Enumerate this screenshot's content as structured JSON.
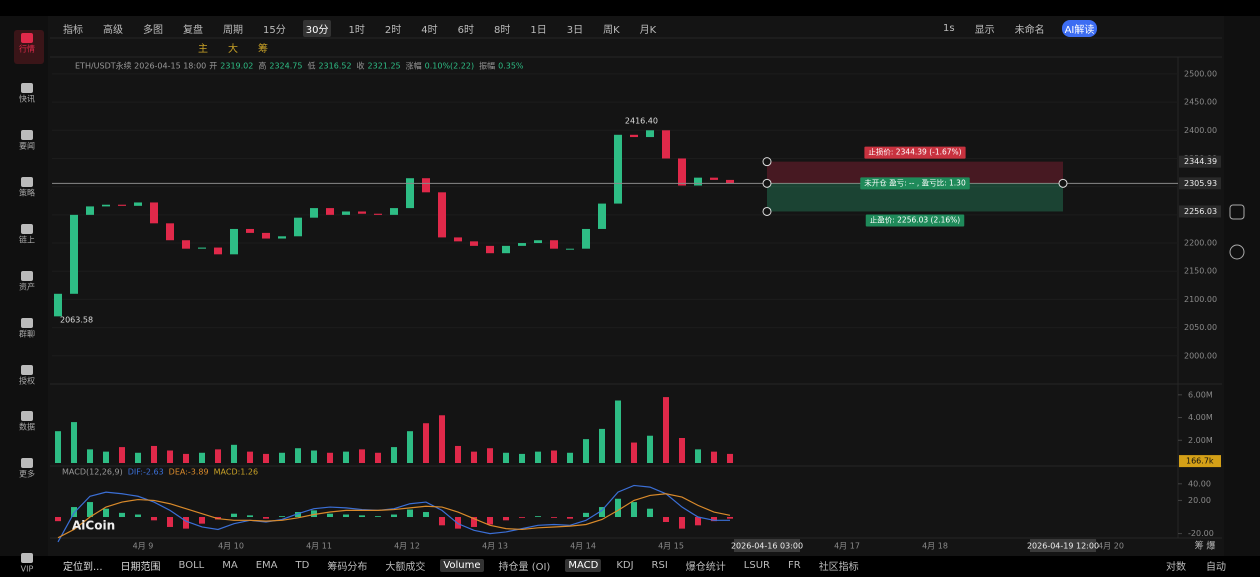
{
  "sidebar": {
    "items": [
      "行情",
      "快讯",
      "要闻",
      "策略",
      "链上",
      "资产",
      "群聊",
      "授权",
      "数据",
      "更多",
      "VIP"
    ]
  },
  "toolbar": {
    "left": [
      "指标",
      "高级",
      "多图",
      "复盘",
      "周期"
    ],
    "periods": [
      "15分",
      "30分",
      "1时",
      "2时",
      "4时",
      "6时",
      "8时",
      "1日",
      "3日",
      "周K",
      "月K"
    ],
    "active": "30分",
    "right": [
      "1s",
      "显示",
      "未命名",
      "AI解读"
    ]
  },
  "drawing_toolbar": {
    "items": [
      "主",
      "大",
      "筹"
    ]
  },
  "chart": {
    "symbol": "ETH/USDT永续 2026-04-15 18:00",
    "fields": [
      {
        "label": "开",
        "value": 2319.02
      },
      {
        "label": "高",
        "value": 2324.75
      },
      {
        "label": "低",
        "value": 2316.52
      },
      {
        "label": "收",
        "value": 2321.25
      },
      {
        "label": "涨幅",
        "value": "0.10%(2.22)"
      },
      {
        "label": "振幅",
        "value": "0.35%"
      }
    ],
    "ylim": [
      1950,
      2530
    ],
    "yticks": [
      {
        "value": 2500,
        "label": "2500.00"
      },
      {
        "value": 2450,
        "label": "2450.00"
      },
      {
        "value": 2400,
        "label": "2400.00"
      },
      {
        "value": 2350,
        "label": "2350.00"
      },
      {
        "value": 2300,
        "label": "2300.00"
      },
      {
        "value": 2250,
        "label": "2250.00"
      },
      {
        "value": 2200,
        "label": "2200.00"
      },
      {
        "value": 2150,
        "label": "2150.00"
      },
      {
        "value": 2100,
        "label": "2100.00"
      },
      {
        "value": 2050,
        "label": "2050.00"
      },
      {
        "value": 2000,
        "label": "2000.00"
      }
    ],
    "first_open": 2070,
    "closes": [
      2110,
      2250,
      2265,
      2268,
      2266,
      2272,
      2235,
      2205,
      2190,
      2192,
      2180,
      2225,
      2218,
      2208,
      2212,
      2245,
      2262,
      2250,
      2256,
      2252,
      2250,
      2262,
      2315,
      2290,
      2210,
      2203,
      2195,
      2182,
      2195,
      2200,
      2205,
      2190,
      2190,
      2225,
      2270,
      2392,
      2388,
      2400,
      2350,
      2302,
      2316,
      2312,
      2306
    ],
    "high": {
      "value": 2416.4,
      "label": "2416.40"
    },
    "low": {
      "value": 2063.58,
      "label": "2063.58"
    },
    "stop_loss": {
      "value": 2344.39,
      "text": "止损价: 2344.39 (-1.67%)"
    },
    "current": {
      "value": 2305.93,
      "text": "未开仓 盈亏: -- , 盈亏比: 1.30"
    },
    "take_profit": {
      "value": 2256.03,
      "text": "止盈价: 2256.03 (2.16%)"
    }
  },
  "volume": {
    "ylim": [
      0,
      6.6
    ],
    "yticks": [
      {
        "value": 6,
        "label": "6.00M"
      },
      {
        "value": 4,
        "label": "4.00M"
      },
      {
        "value": 2,
        "label": "2.00M"
      }
    ],
    "values": [
      2.8,
      3.6,
      1.2,
      1.0,
      1.4,
      0.9,
      1.5,
      1.1,
      0.8,
      0.9,
      1.2,
      1.6,
      1.0,
      0.8,
      0.9,
      1.3,
      1.1,
      0.9,
      1.0,
      1.2,
      0.9,
      1.4,
      2.8,
      3.5,
      4.2,
      1.5,
      1.0,
      1.3,
      0.9,
      0.8,
      1.0,
      1.1,
      0.9,
      2.1,
      3.0,
      5.5,
      1.8,
      2.4,
      5.8,
      2.2,
      1.2,
      1.0,
      0.8
    ],
    "last": {
      "value": 0.1667,
      "label": "166.7k"
    }
  },
  "macd": {
    "legend": [
      "MACD(12,26,9)",
      "DIF:-2.63",
      "DEA:-3.89",
      "MACD:1.26"
    ],
    "ylim": [
      -27.7,
      47
    ],
    "yticks": [
      {
        "value": 40,
        "label": "40.00"
      },
      {
        "value": 20,
        "label": "20.00"
      },
      {
        "value": -20,
        "label": "-20.00"
      }
    ],
    "hist": [
      -5,
      12,
      18,
      10,
      5,
      3,
      -4,
      -12,
      -14,
      -8,
      -3,
      4,
      2,
      -2,
      1,
      6,
      8,
      4,
      3,
      2,
      1,
      3,
      9,
      6,
      -10,
      -14,
      -12,
      -9,
      -4,
      -1,
      1,
      -1,
      -2,
      5,
      12,
      22,
      18,
      10,
      -6,
      -14,
      -10,
      -5,
      -2
    ],
    "dif": [
      -30,
      5,
      25,
      30,
      28,
      25,
      18,
      8,
      -5,
      -12,
      -15,
      -8,
      -4,
      -6,
      -3,
      4,
      10,
      12,
      11,
      9,
      8,
      10,
      16,
      18,
      8,
      -8,
      -16,
      -20,
      -18,
      -14,
      -10,
      -9,
      -10,
      -4,
      8,
      30,
      38,
      36,
      28,
      12,
      0,
      -4,
      -4
    ],
    "dea": [
      -25,
      -15,
      0,
      12,
      18,
      21,
      20,
      16,
      10,
      4,
      -2,
      -4,
      -4,
      -5,
      -4,
      -1,
      3,
      6,
      8,
      8,
      8,
      9,
      11,
      13,
      12,
      6,
      -2,
      -10,
      -14,
      -15,
      -13,
      -12,
      -11,
      -9,
      -3,
      8,
      20,
      26,
      28,
      24,
      14,
      6,
      2
    ],
    "watermark": "AiCoin"
  },
  "time_axis": {
    "days": [
      "4月 9",
      "4月 10",
      "4月 11",
      "4月 12",
      "4月 13",
      "4月 14",
      "4月 15",
      null,
      "4月 17",
      "4月 18",
      null,
      "4月 20"
    ],
    "crosshair": [
      "2026-04-16 03:00",
      "2026-04-19 12:00"
    ],
    "right": "筹 爆"
  },
  "bottom_bar": {
    "left": [
      "定位到...",
      "日期范围"
    ],
    "indicators": [
      "BOLL",
      "MA",
      "EMA",
      "TD",
      "筹码分布",
      "大额成交",
      "Volume",
      "持仓量 (OI)",
      "MACD",
      "KDJ",
      "RSI",
      "爆仓统计",
      "LSUR",
      "FR",
      "社区指标"
    ],
    "right": [
      "对数",
      "自动"
    ]
  }
}
